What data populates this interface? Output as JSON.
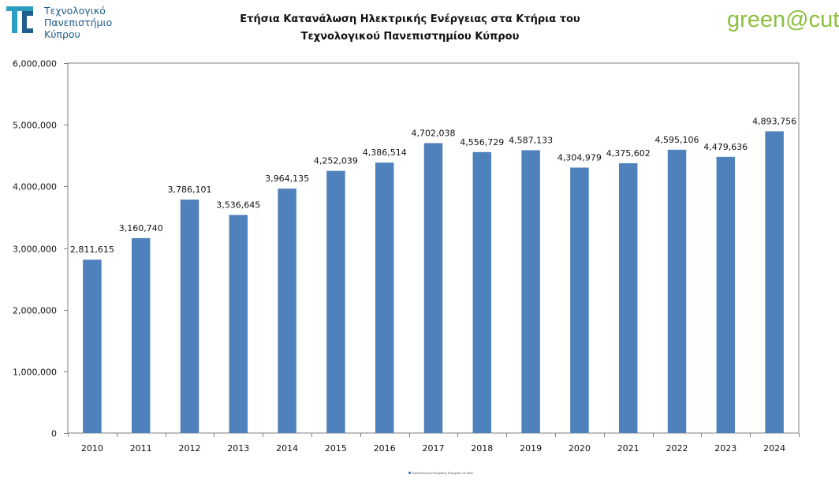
{
  "header": {
    "university_lines": [
      "Τεχνολογικό",
      "Πανεπιστήμιο",
      "Κύπρου"
    ],
    "title_lines": [
      "Ετήσια Κατανάλωση Ηλεκτρικής Ενέργειας στα Κτήρια του",
      "Τεχνολογικού Πανεπιστημίου Κύπρου"
    ],
    "brand_green": "green",
    "brand_at": "@",
    "brand_cut": "cut",
    "brand_color": "#8bbf3c",
    "university_color": "#1f5e8c"
  },
  "chart_data": {
    "type": "bar",
    "title": "Ετήσια Κατανάλωση Ηλεκτρικής Ενέργειας στα Κτήρια του Τεχνολογικού Πανεπιστημίου Κύπρου",
    "categories": [
      "2010",
      "2011",
      "2012",
      "2013",
      "2014",
      "2015",
      "2016",
      "2017",
      "2018",
      "2019",
      "2020",
      "2021",
      "2022",
      "2023",
      "2024"
    ],
    "values": [
      2811615,
      3160740,
      3786101,
      3536645,
      3964135,
      4252039,
      4386514,
      4702038,
      4556729,
      4587133,
      4304979,
      4375602,
      4595106,
      4479636,
      4893756
    ],
    "value_labels": [
      "2,811,615",
      "3,160,740",
      "3,786,101",
      "3,536,645",
      "3,964,135",
      "4,252,039",
      "4,386,514",
      "4,702,038",
      "4,556,729",
      "4,587,133",
      "4,304,979",
      "4,375,602",
      "4,595,106",
      "4,479,636",
      "4,893,756"
    ],
    "y_ticks": [
      0,
      1000000,
      2000000,
      3000000,
      4000000,
      5000000,
      6000000
    ],
    "y_tick_labels": [
      "0",
      "1,000,000",
      "2,000,000",
      "3,000,000",
      "4,000,000",
      "5,000,000",
      "6,000,000"
    ],
    "ylim": [
      0,
      6000000
    ],
    "xlabel": "",
    "ylabel": "",
    "grid": false,
    "legend_position": "bottom",
    "series_color": "#4f81bd",
    "series": [
      {
        "name": "Κατανάλωση Ηλεκτρικής Ενέργειας σε kWh",
        "color": "#4f81bd"
      }
    ]
  }
}
